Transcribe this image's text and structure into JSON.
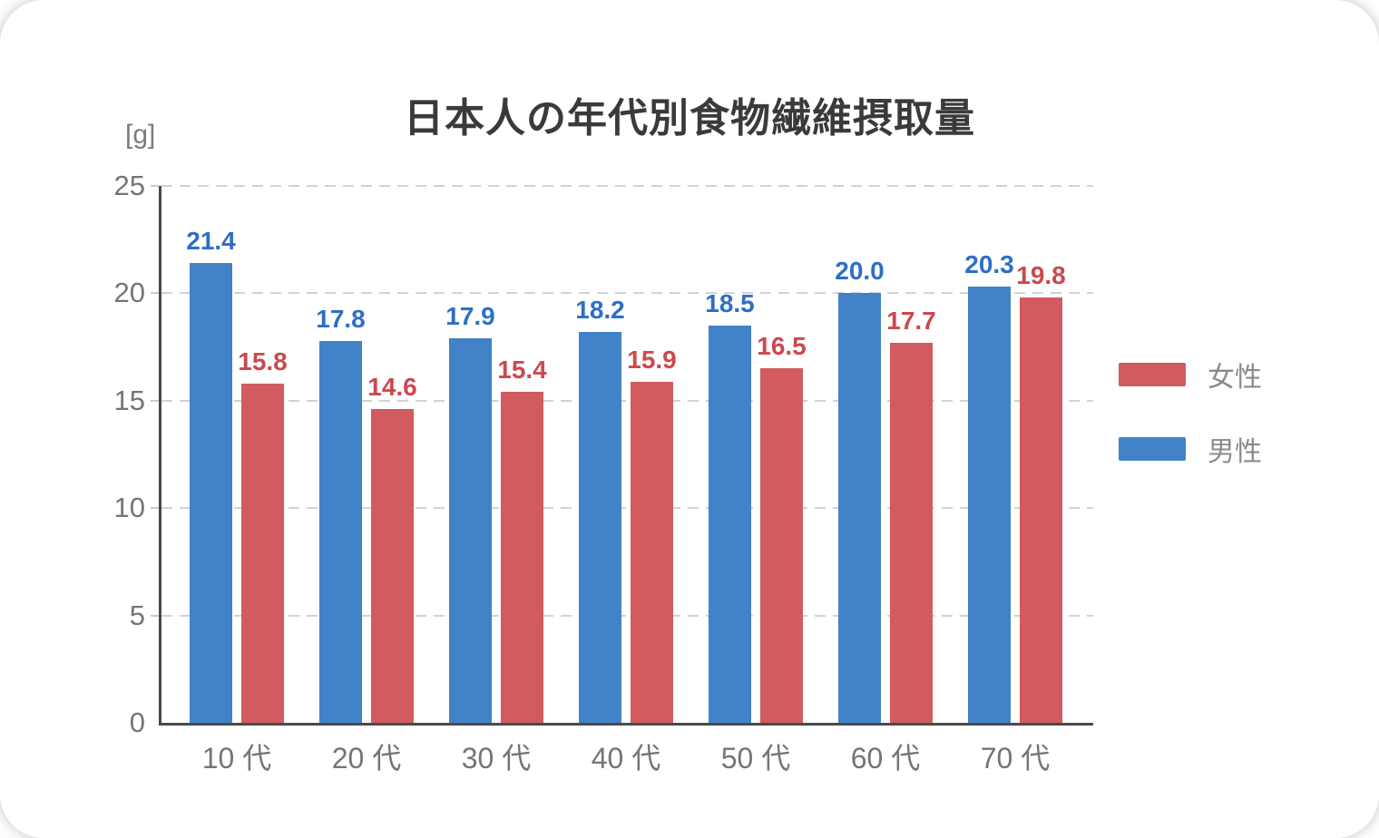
{
  "chart_data": {
    "type": "bar",
    "title": "日本人の年代別食物繊維摂取量",
    "unit_label": "[g]",
    "categories": [
      "10 代",
      "20 代",
      "30 代",
      "40 代",
      "50 代",
      "60 代",
      "70 代"
    ],
    "series": [
      {
        "name": "男性",
        "color": "#4282C8",
        "label_color": "#2E6FC3",
        "values": [
          21.4,
          17.8,
          17.9,
          18.2,
          18.5,
          20.0,
          20.3
        ]
      },
      {
        "name": "女性",
        "color": "#D15B5E",
        "label_color": "#CB4950",
        "values": [
          15.8,
          14.6,
          15.4,
          15.9,
          16.5,
          17.7,
          19.8
        ]
      }
    ],
    "legend": {
      "position": "right",
      "entries": [
        "女性",
        "男性"
      ]
    },
    "ylim": [
      0,
      25
    ],
    "yticks": [
      0,
      5,
      10,
      15,
      20,
      25
    ],
    "grid": {
      "horizontal": true,
      "style": "dashed"
    },
    "value_labels_decimals": 1,
    "axis_color": "#4A4A4A",
    "grid_color": "#D2D2D2",
    "text_color": "#757575"
  }
}
